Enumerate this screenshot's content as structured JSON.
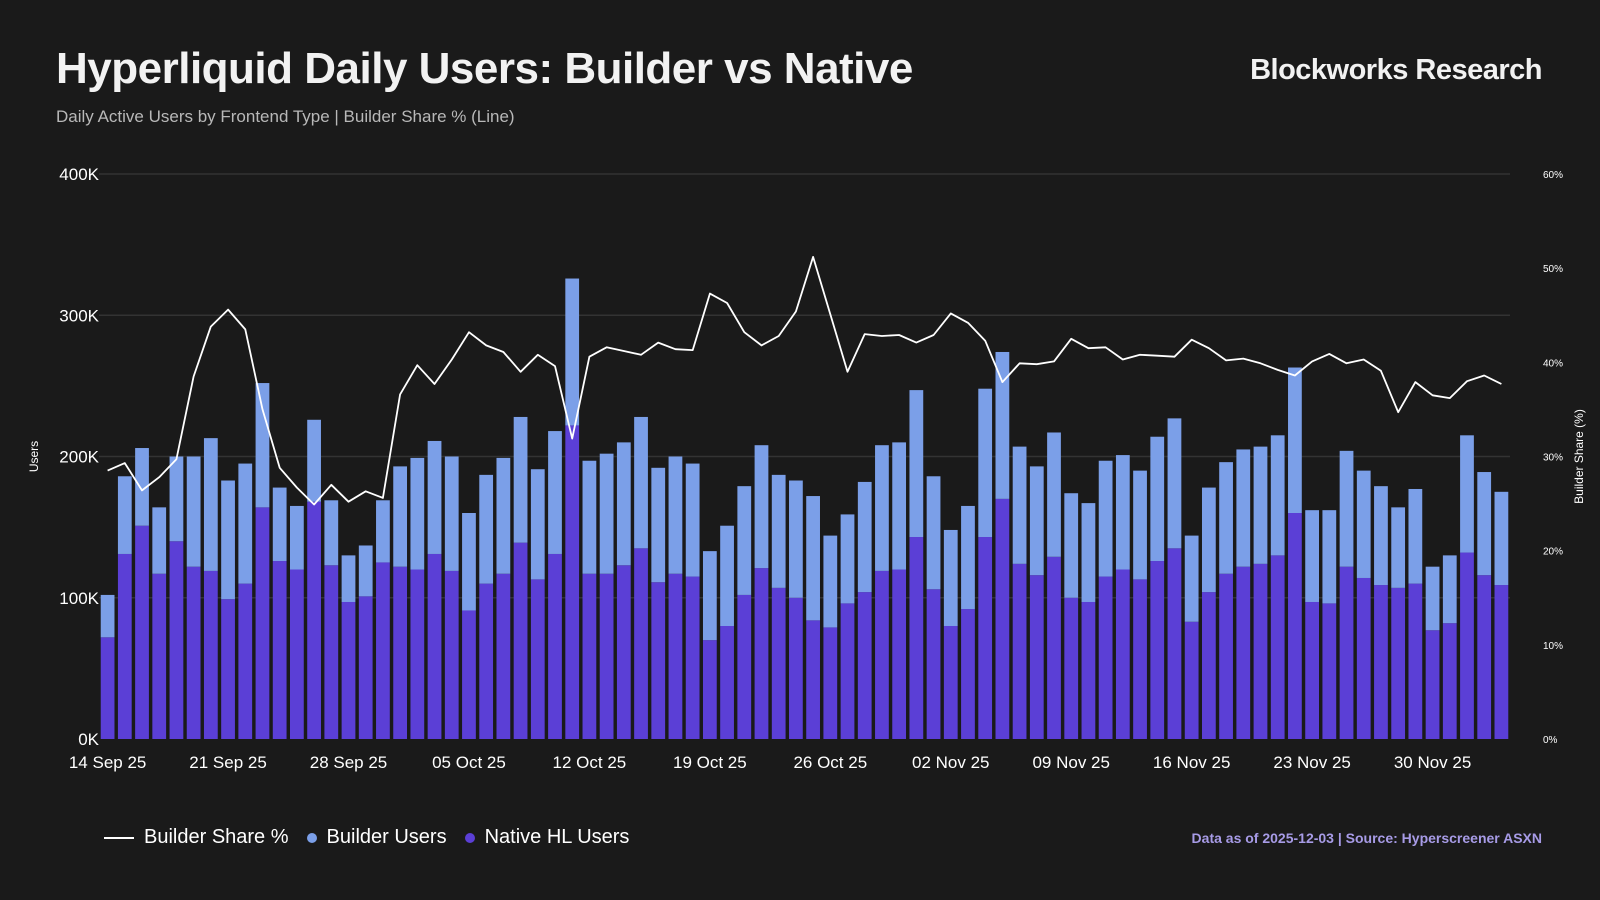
{
  "header": {
    "title": "Hyperliquid Daily Users: Builder vs Native",
    "subtitle": "Daily Active Users by Frontend Type | Builder Share % (Line)",
    "brand": "Blockworks Research"
  },
  "footer": {
    "source": "Data as of 2025-12-03 | Source: Hyperscreener ASXN"
  },
  "colors": {
    "background": "#1a1a1a",
    "builder": "#7b9fe8",
    "native": "#5b3fd6",
    "line": "#ffffff",
    "grid": "#333333",
    "source": "#a79be6"
  },
  "chart_data": {
    "type": "bar",
    "stacked": true,
    "ylabel": "Users",
    "y2label": "Builder Share (%)",
    "ylim": [
      0,
      400000
    ],
    "y2lim": [
      0,
      60
    ],
    "yticks": [
      "0K",
      "100K",
      "200K",
      "300K",
      "400K"
    ],
    "y2ticks": [
      "0%",
      "10%",
      "20%",
      "30%",
      "40%",
      "50%",
      "60%"
    ],
    "xtick_labels": [
      "14 Sep 25",
      "21 Sep 25",
      "28 Sep 25",
      "05 Oct 25",
      "12 Oct 25",
      "19 Oct 25",
      "26 Oct 25",
      "02 Nov 25",
      "09 Nov 25",
      "16 Nov 25",
      "23 Nov 25",
      "30 Nov 25"
    ],
    "xtick_every": 7,
    "grid": "horizontal",
    "legend_position": "bottom-left",
    "categories_start": "2025-09-14",
    "categories_end": "2025-12-03",
    "series": [
      {
        "name": "Native HL Users",
        "type": "bar",
        "values": [
          72000,
          131000,
          151000,
          117000,
          140000,
          122000,
          119000,
          99000,
          110000,
          164000,
          126000,
          120000,
          168000,
          123000,
          97000,
          101000,
          125000,
          122000,
          120000,
          131000,
          119000,
          91000,
          110000,
          117000,
          139000,
          113000,
          131000,
          222000,
          117000,
          117000,
          123000,
          135000,
          111000,
          117000,
          115000,
          70000,
          80000,
          102000,
          121000,
          107000,
          100000,
          84000,
          79000,
          96000,
          104000,
          119000,
          120000,
          143000,
          106000,
          80000,
          92000,
          143000,
          170000,
          124000,
          116000,
          129000,
          100000,
          97000,
          115000,
          120000,
          113000,
          126000,
          135000,
          83000,
          104000,
          117000,
          122000,
          124000,
          130000,
          160000,
          97000,
          96000,
          122000,
          114000,
          109000,
          107000,
          110000,
          77000,
          82000,
          132000,
          116000,
          109000
        ]
      },
      {
        "name": "Builder Users",
        "type": "bar",
        "values": [
          30000,
          55000,
          55000,
          47000,
          60000,
          78000,
          94000,
          84000,
          85000,
          88000,
          52000,
          45000,
          58000,
          46000,
          33000,
          36000,
          44000,
          71000,
          79000,
          80000,
          81000,
          69000,
          77000,
          82000,
          89000,
          78000,
          87000,
          104000,
          80000,
          85000,
          87000,
          93000,
          81000,
          83000,
          80000,
          63000,
          71000,
          77000,
          87000,
          80000,
          83000,
          88000,
          65000,
          63000,
          78000,
          89000,
          90000,
          104000,
          80000,
          68000,
          73000,
          105000,
          104000,
          83000,
          77000,
          88000,
          74000,
          70000,
          82000,
          81000,
          77000,
          88000,
          92000,
          61000,
          74000,
          79000,
          83000,
          83000,
          85000,
          103000,
          65000,
          66000,
          82000,
          76000,
          70000,
          57000,
          67000,
          45000,
          48000,
          83000,
          73000,
          66000
        ]
      },
      {
        "name": "Builder Share %",
        "type": "line",
        "axis": "right",
        "values": [
          28.5,
          29.3,
          26.4,
          27.8,
          29.7,
          38.5,
          43.8,
          45.6,
          43.5,
          35.0,
          28.8,
          26.7,
          24.9,
          27.0,
          25.2,
          26.3,
          25.6,
          36.6,
          39.7,
          37.7,
          40.3,
          43.2,
          41.8,
          41.1,
          39.0,
          40.8,
          39.6,
          31.9,
          40.6,
          41.6,
          41.2,
          40.8,
          42.1,
          41.4,
          41.3,
          47.3,
          46.3,
          43.2,
          41.8,
          42.8,
          45.4,
          51.2,
          45.1,
          39.0,
          43.0,
          42.8,
          42.9,
          42.1,
          42.9,
          45.2,
          44.2,
          42.3,
          37.9,
          39.9,
          39.8,
          40.1,
          42.5,
          41.5,
          41.6,
          40.3,
          40.8,
          40.7,
          40.6,
          42.4,
          41.5,
          40.2,
          40.4,
          39.9,
          39.2,
          38.6,
          40.1,
          40.9,
          39.9,
          40.3,
          39.1,
          34.7,
          37.9,
          36.5,
          36.2,
          38.0,
          38.6,
          37.7
        ]
      }
    ]
  }
}
